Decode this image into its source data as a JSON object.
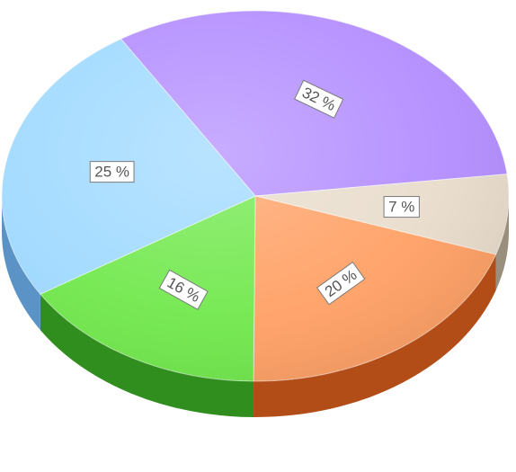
{
  "chart_data": {
    "type": "pie",
    "title": "",
    "three_d": true,
    "start_angle_deg": -122,
    "direction": "clockwise",
    "slices": [
      {
        "label": "32 %",
        "value": 32,
        "color": "#b28cff",
        "side_color": "#6f4fc2"
      },
      {
        "label": "7 %",
        "value": 7,
        "color": "#e8dccb",
        "side_color": "#9a8e7c"
      },
      {
        "label": "20 %",
        "value": 20,
        "color": "#ff9f63",
        "side_color": "#b34d18"
      },
      {
        "label": "16 %",
        "value": 16,
        "color": "#6fe84a",
        "side_color": "#2f8e1d"
      },
      {
        "label": "25 %",
        "value": 25,
        "color": "#9ed9ff",
        "side_color": "#5b93c7"
      }
    ]
  }
}
